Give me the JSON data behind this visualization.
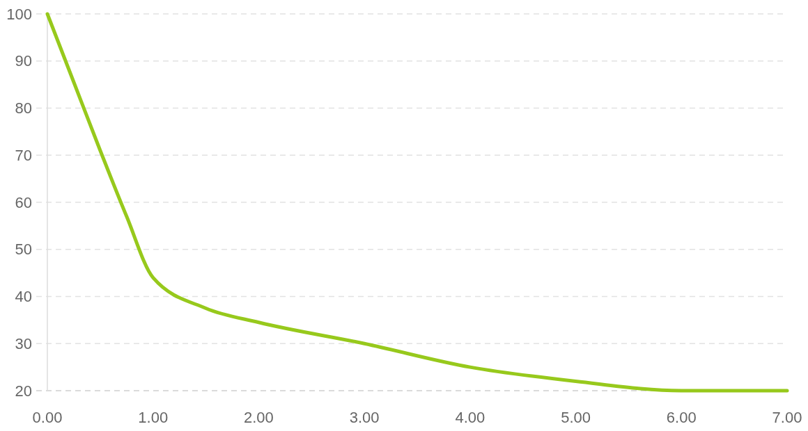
{
  "chart_data": {
    "type": "line",
    "x": [
      0,
      0.25,
      0.5,
      0.75,
      1,
      1.5,
      2,
      3,
      4,
      5,
      6,
      7
    ],
    "series": [
      {
        "color": "#97c91c",
        "values": [
          100,
          85.5,
          71,
          57,
          44,
          37.5,
          34.5,
          30,
          25,
          22,
          20,
          20
        ]
      }
    ],
    "xlim": [
      0,
      7
    ],
    "xticks": [
      {
        "value": 0,
        "label": "0.00"
      },
      {
        "value": 1,
        "label": "1.00"
      },
      {
        "value": 2,
        "label": "2.00"
      },
      {
        "value": 3,
        "label": "3.00"
      },
      {
        "value": 4,
        "label": "4.00"
      },
      {
        "value": 5,
        "label": "5.00"
      },
      {
        "value": 6,
        "label": "6.00"
      },
      {
        "value": 7,
        "label": "7.00"
      }
    ],
    "ylim": [
      20,
      100
    ],
    "yticks": [
      20,
      30,
      40,
      50,
      60,
      70,
      80,
      90,
      100
    ],
    "grid": "y"
  }
}
